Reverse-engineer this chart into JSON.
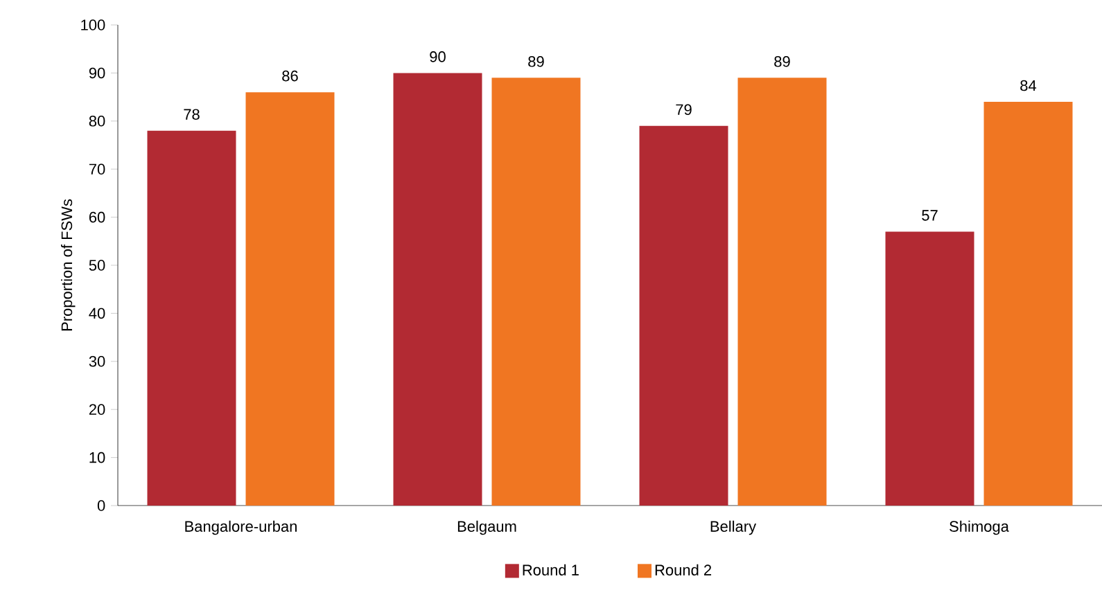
{
  "chart_data": {
    "type": "bar",
    "ylabel": "Proportion of FSWs",
    "categories": [
      "Bangalore-urban",
      "Belgaum",
      "Bellary",
      "Shimoga"
    ],
    "series": [
      {
        "name": "Round 1",
        "color": "#b22a33",
        "values": [
          78,
          90,
          79,
          57
        ]
      },
      {
        "name": "Round 2",
        "color": "#f07622",
        "values": [
          86,
          89,
          89,
          84
        ]
      }
    ],
    "ylim": [
      0,
      100
    ],
    "yticks": [
      0,
      10,
      20,
      30,
      40,
      50,
      60,
      70,
      80,
      90,
      100
    ],
    "data_labels": true,
    "legend": "bottom"
  }
}
